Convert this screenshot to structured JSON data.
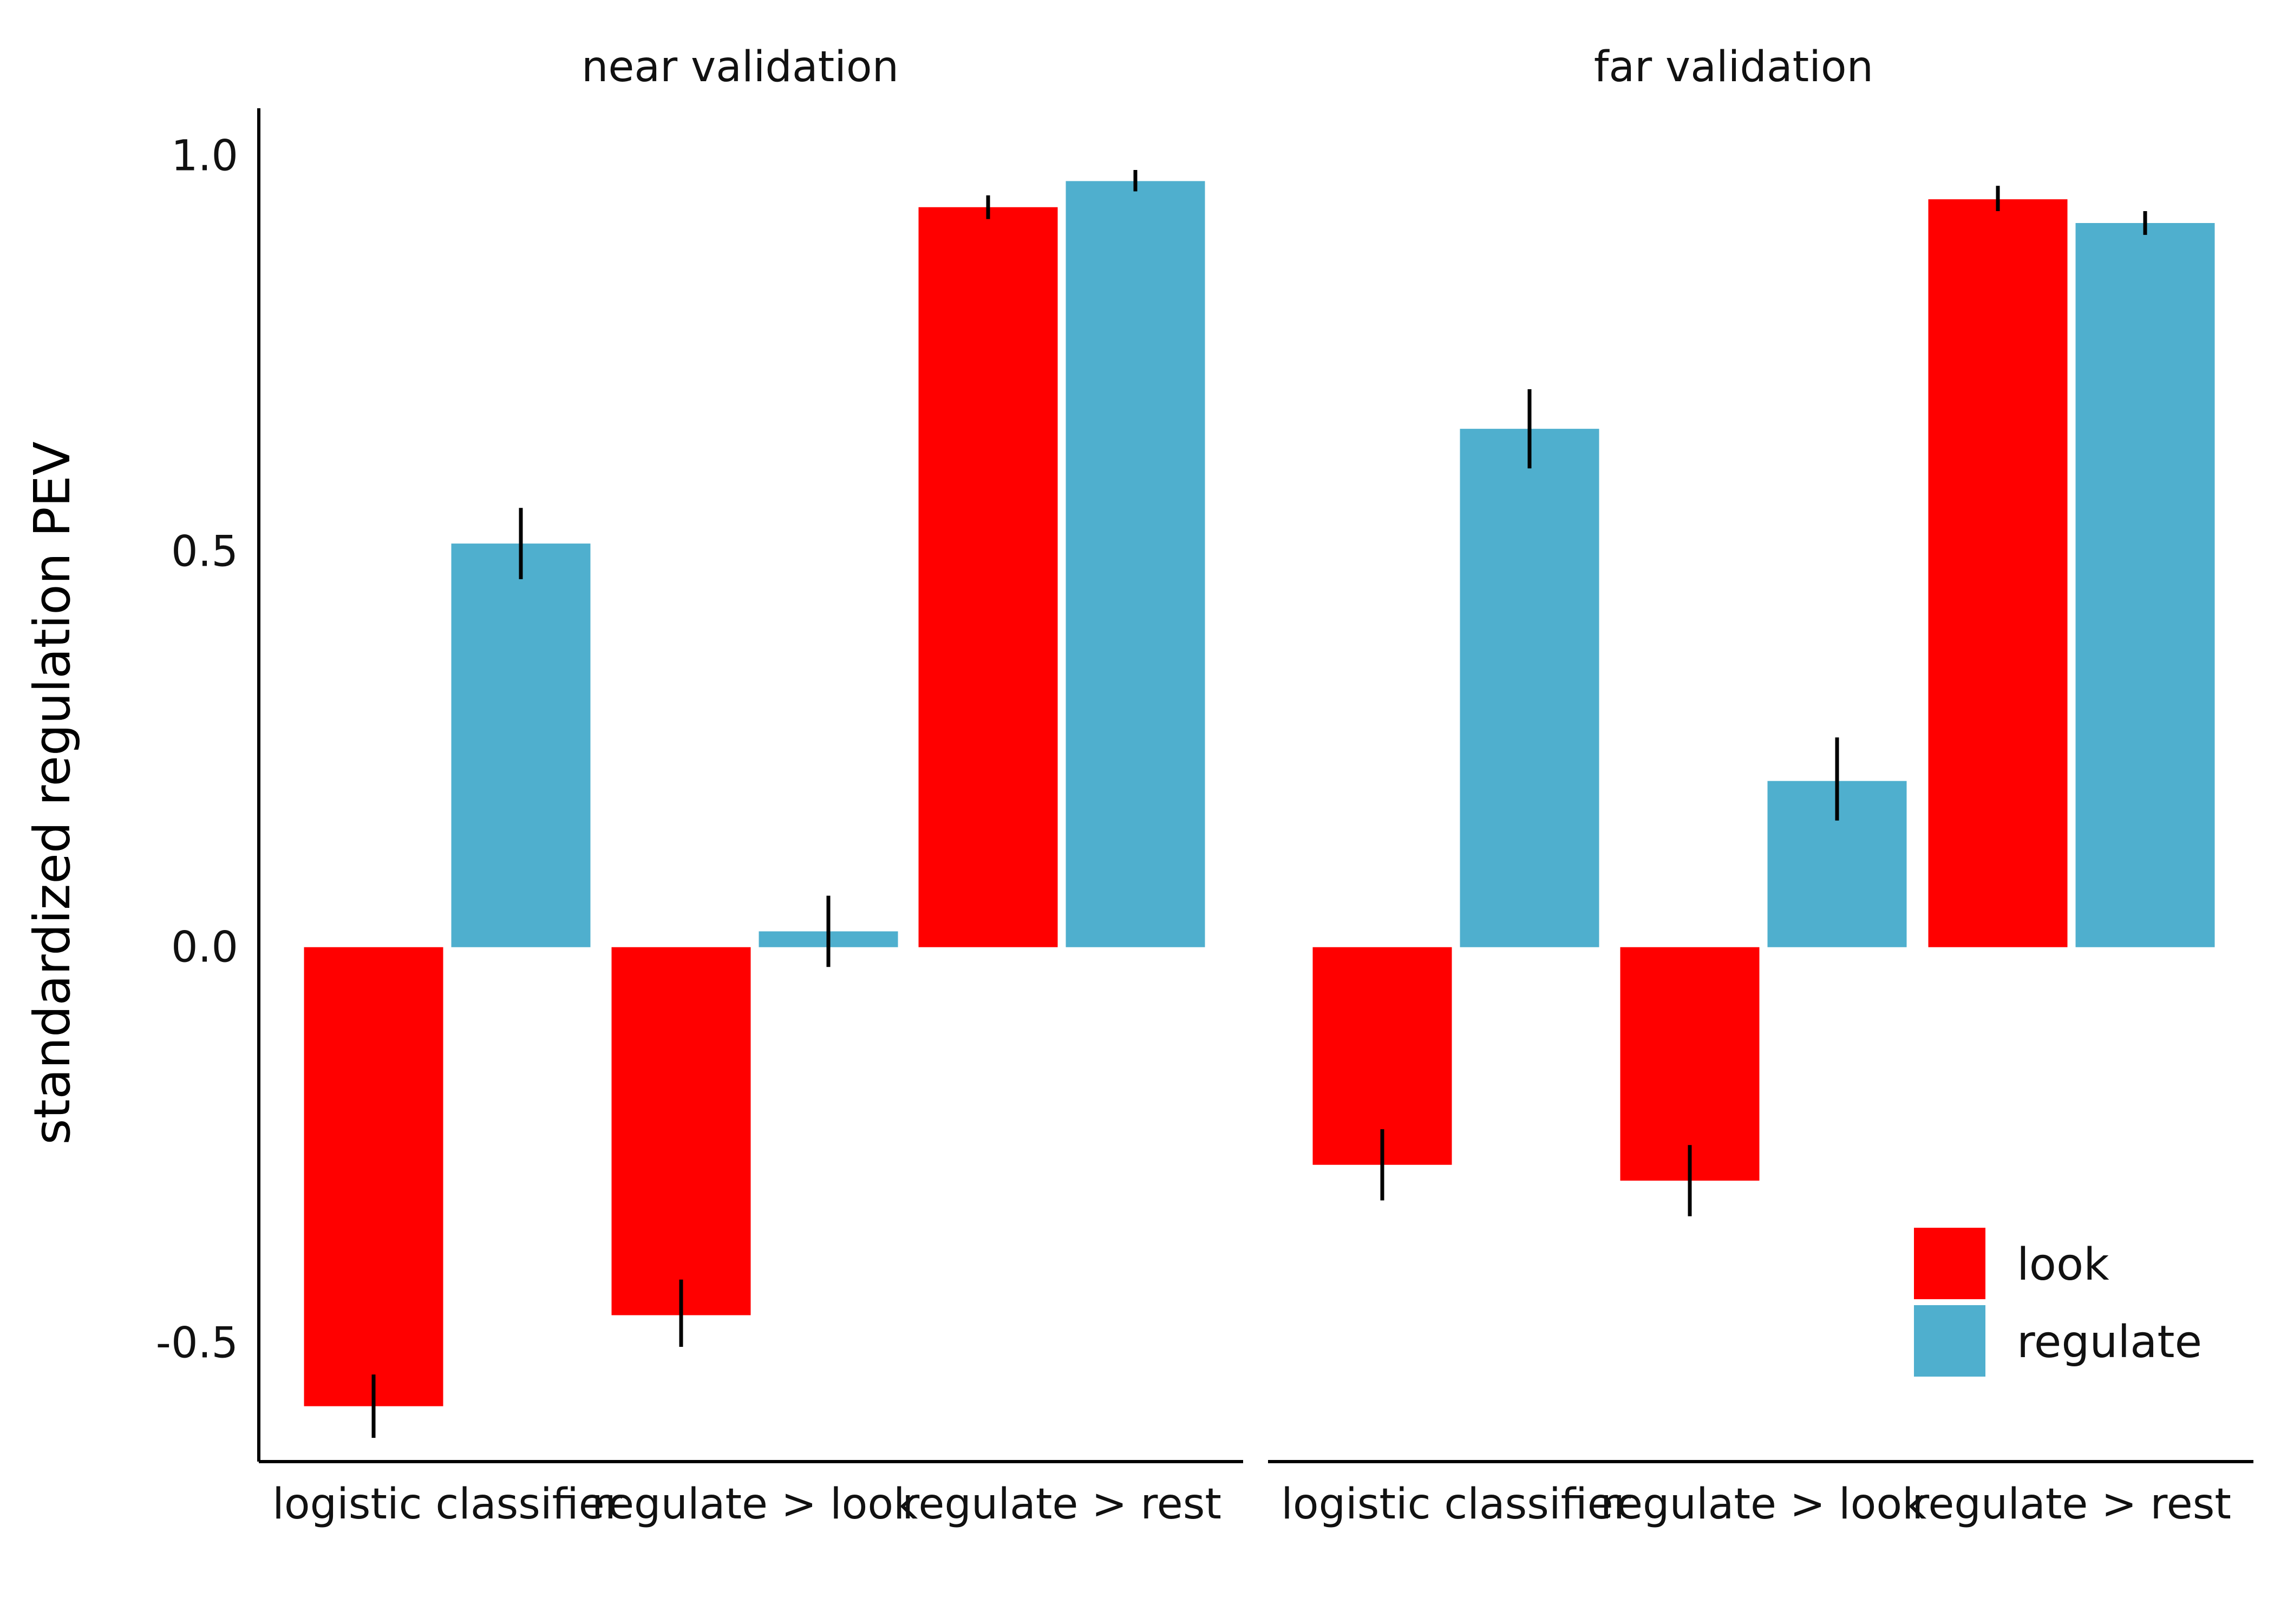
{
  "chart_data": {
    "type": "bar",
    "ylabel": "standardized regulation PEV",
    "ylim": [
      -0.65,
      1.06
    ],
    "yticks": [
      -0.5,
      0.0,
      0.5,
      1.0
    ],
    "ytick_labels": [
      "-0.5",
      "0.0",
      "0.5",
      "1.0"
    ],
    "categories": [
      "logistic classifier",
      "regulate > look",
      "regulate > rest"
    ],
    "legend": {
      "position": "bottom-right"
    },
    "colors": {
      "look": "#ff0000",
      "regulate": "#4fafce"
    },
    "panels": [
      {
        "title": "near validation",
        "series": [
          {
            "name": "look",
            "values": [
              -0.58,
              -0.465,
              0.935
            ],
            "err_low": [
              -0.62,
              -0.505,
              0.92
            ],
            "err_high": [
              -0.54,
              -0.42,
              0.95
            ]
          },
          {
            "name": "regulate",
            "values": [
              0.51,
              0.02,
              0.968
            ],
            "err_low": [
              0.465,
              -0.025,
              0.955
            ],
            "err_high": [
              0.555,
              0.065,
              0.982
            ]
          }
        ]
      },
      {
        "title": "far validation",
        "series": [
          {
            "name": "look",
            "values": [
              -0.275,
              -0.295,
              0.945
            ],
            "err_low": [
              -0.32,
              -0.34,
              0.93
            ],
            "err_high": [
              -0.23,
              -0.25,
              0.962
            ]
          },
          {
            "name": "regulate",
            "values": [
              0.655,
              0.21,
              0.915
            ],
            "err_low": [
              0.605,
              0.16,
              0.9
            ],
            "err_high": [
              0.705,
              0.265,
              0.93
            ]
          }
        ]
      }
    ]
  }
}
